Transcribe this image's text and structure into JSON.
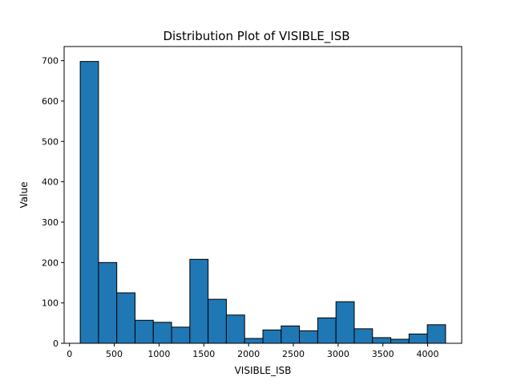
{
  "chart_data": {
    "type": "bar",
    "title": "Distribution Plot of VISIBLE_ISB",
    "xlabel": "VISIBLE_ISB",
    "ylabel": "Value",
    "bin_edges": [
      120,
      324,
      528,
      732,
      936,
      1140,
      1344,
      1548,
      1752,
      1956,
      2160,
      2364,
      2568,
      2772,
      2976,
      3180,
      3384,
      3588,
      3792,
      3996,
      4200
    ],
    "values": [
      698,
      200,
      125,
      57,
      52,
      40,
      208,
      109,
      70,
      12,
      33,
      43,
      31,
      63,
      103,
      36,
      14,
      10,
      23,
      46
    ],
    "xlim": [
      -60,
      4380
    ],
    "ylim": [
      0,
      735
    ],
    "x_ticks": [
      0,
      500,
      1000,
      1500,
      2000,
      2500,
      3000,
      3500,
      4000
    ],
    "x_tick_labels": [
      "0",
      "500",
      "1000",
      "1500",
      "2000",
      "2500",
      "3000",
      "3500",
      "4000"
    ],
    "y_ticks": [
      0,
      100,
      200,
      300,
      400,
      500,
      600,
      700
    ],
    "y_tick_labels": [
      "0",
      "100",
      "200",
      "300",
      "400",
      "500",
      "600",
      "700"
    ],
    "bar_color": "#1f77b4",
    "edge_color": "#000000",
    "grid": false
  }
}
